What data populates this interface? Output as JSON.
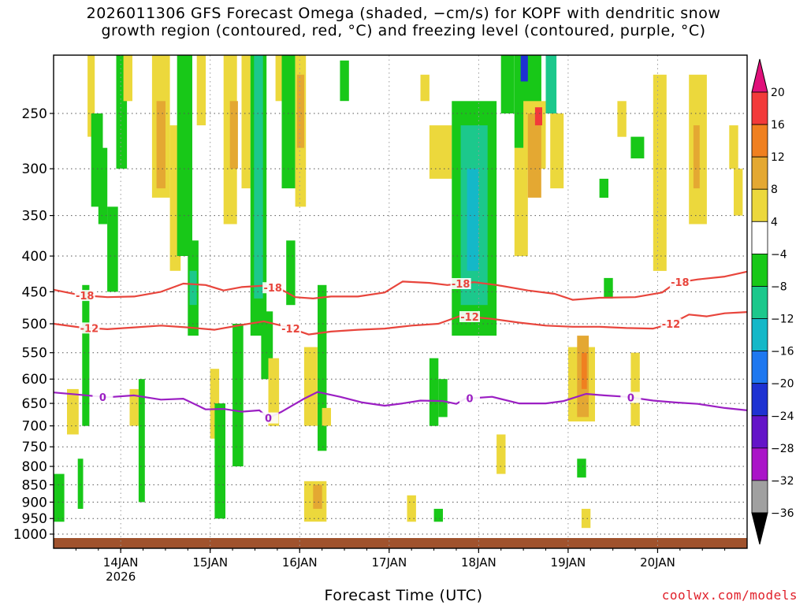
{
  "header": {
    "title_line1": "2026011306 GFS Forecast Omega (shaded, −cm/s) for KOPF with dendritic snow",
    "title_line2": "growth region (contoured, red, °C) and freezing level (contoured, purple, °C)"
  },
  "footer": {
    "xlabel": "Forecast Time (UTC)",
    "credit": "coolwx.com/models"
  },
  "colors": {
    "ground": "#a0522d",
    "snow_contour": "#e8453c",
    "freezing_contour": "#9b1fc3",
    "grid": "#555555"
  },
  "chart_data": {
    "type": "heatmap",
    "title": "2026011306 GFS Forecast Omega (shaded, −cm/s) for KOPF with dendritic snow growth region (contoured, red, °C) and freezing level (contoured, purple, °C)",
    "xlabel": "Forecast Time (UTC)",
    "ylabel": "",
    "x_range_days": [
      "2026-01-13T06",
      "2026-01-20T18"
    ],
    "y_axis": "pressure (hPa), log scale, inverted",
    "ylim": [
      1020,
      200
    ],
    "x_ticks": [
      {
        "label": "14JAN",
        "sub": "2026",
        "day": 0.75
      },
      {
        "label": "15JAN",
        "sub": "",
        "day": 1.75
      },
      {
        "label": "16JAN",
        "sub": "",
        "day": 2.75
      },
      {
        "label": "17JAN",
        "sub": "",
        "day": 3.75
      },
      {
        "label": "18JAN",
        "sub": "",
        "day": 4.75
      },
      {
        "label": "19JAN",
        "sub": "",
        "day": 5.75
      },
      {
        "label": "20JAN",
        "sub": "",
        "day": 6.75
      }
    ],
    "y_ticks": [
      "250",
      "300",
      "350",
      "400",
      "450",
      "500",
      "550",
      "600",
      "650",
      "700",
      "750",
      "800",
      "850",
      "900",
      "950",
      "1000"
    ],
    "y_tick_values": [
      250,
      300,
      350,
      400,
      450,
      500,
      550,
      600,
      650,
      700,
      750,
      800,
      850,
      900,
      950,
      1000
    ],
    "grid": true,
    "colorbar": {
      "labels": [
        "20",
        "16",
        "12",
        "8",
        "4",
        "−4",
        "−8",
        "−12",
        "−16",
        "−20",
        "−24",
        "−28",
        "−32",
        "−36"
      ],
      "bins": [
        {
          "from": 16,
          "to": 20,
          "color": "#f23a3a"
        },
        {
          "from": 12,
          "to": 16,
          "color": "#f08020"
        },
        {
          "from": 8,
          "to": 12,
          "color": "#e4a832"
        },
        {
          "from": 4,
          "to": 8,
          "color": "#ecd83c"
        },
        {
          "from": -4,
          "to": 4,
          "color": "#ffffff"
        },
        {
          "from": -8,
          "to": -4,
          "color": "#18c818"
        },
        {
          "from": -12,
          "to": -8,
          "color": "#1cc88c"
        },
        {
          "from": -16,
          "to": -12,
          "color": "#14b8c8"
        },
        {
          "from": -20,
          "to": -16,
          "color": "#1e78f0"
        },
        {
          "from": -24,
          "to": -20,
          "color": "#1e32d2"
        },
        {
          "from": -28,
          "to": -24,
          "color": "#6414c8"
        },
        {
          "from": -32,
          "to": -28,
          "color": "#aa14c8"
        },
        {
          "from": -36,
          "to": -32,
          "color": "#a0a0a0"
        }
      ],
      "over_color": "#e0107a",
      "under_color": "#000000"
    },
    "contours": [
      {
        "name": "-18",
        "color": "#e8453c",
        "labels": [
          "-18",
          "-18",
          "-18",
          "-18"
        ],
        "label_days": [
          0.35,
          2.45,
          4.55,
          7.0
        ],
        "points": [
          [
            0.0,
            447
          ],
          [
            0.3,
            455
          ],
          [
            0.6,
            458
          ],
          [
            0.9,
            457
          ],
          [
            1.2,
            450
          ],
          [
            1.45,
            438
          ],
          [
            1.7,
            440
          ],
          [
            1.9,
            448
          ],
          [
            2.1,
            443
          ],
          [
            2.35,
            441
          ],
          [
            2.55,
            447
          ],
          [
            2.7,
            458
          ],
          [
            2.9,
            460
          ],
          [
            3.1,
            457
          ],
          [
            3.4,
            457
          ],
          [
            3.7,
            451
          ],
          [
            3.9,
            435
          ],
          [
            4.2,
            437
          ],
          [
            4.4,
            440
          ],
          [
            4.7,
            436
          ],
          [
            4.95,
            440
          ],
          [
            5.3,
            448
          ],
          [
            5.6,
            453
          ],
          [
            5.8,
            462
          ],
          [
            6.1,
            459
          ],
          [
            6.5,
            458
          ],
          [
            6.8,
            451
          ],
          [
            6.95,
            437
          ],
          [
            7.2,
            432
          ],
          [
            7.5,
            428
          ],
          [
            7.75,
            421
          ]
        ]
      },
      {
        "name": "-12",
        "color": "#e8453c",
        "labels": [
          "-12",
          "-12",
          "-12",
          "-12"
        ],
        "label_days": [
          0.4,
          2.65,
          4.65,
          6.9
        ],
        "points": [
          [
            0.0,
            500
          ],
          [
            0.3,
            506
          ],
          [
            0.6,
            509
          ],
          [
            0.9,
            506
          ],
          [
            1.2,
            503
          ],
          [
            1.5,
            506
          ],
          [
            1.8,
            510
          ],
          [
            2.1,
            502
          ],
          [
            2.35,
            496
          ],
          [
            2.6,
            505
          ],
          [
            2.85,
            518
          ],
          [
            3.1,
            513
          ],
          [
            3.4,
            510
          ],
          [
            3.7,
            508
          ],
          [
            4.0,
            503
          ],
          [
            4.3,
            500
          ],
          [
            4.55,
            487
          ],
          [
            4.9,
            492
          ],
          [
            5.2,
            498
          ],
          [
            5.5,
            503
          ],
          [
            5.8,
            505
          ],
          [
            6.1,
            505
          ],
          [
            6.4,
            507
          ],
          [
            6.7,
            508
          ],
          [
            6.9,
            500
          ],
          [
            7.1,
            485
          ],
          [
            7.3,
            488
          ],
          [
            7.5,
            483
          ],
          [
            7.75,
            481
          ]
        ]
      },
      {
        "name": "0",
        "color": "#9b1fc3",
        "labels": [
          "0",
          "0",
          "0",
          "0"
        ],
        "label_days": [
          0.55,
          2.4,
          4.65,
          6.45
        ],
        "points": [
          [
            0.0,
            627
          ],
          [
            0.3,
            632
          ],
          [
            0.6,
            637
          ],
          [
            0.9,
            633
          ],
          [
            1.2,
            642
          ],
          [
            1.45,
            640
          ],
          [
            1.7,
            663
          ],
          [
            1.9,
            662
          ],
          [
            2.1,
            668
          ],
          [
            2.3,
            665
          ],
          [
            2.4,
            682
          ],
          [
            2.55,
            668
          ],
          [
            2.8,
            640
          ],
          [
            2.95,
            626
          ],
          [
            3.2,
            636
          ],
          [
            3.45,
            648
          ],
          [
            3.7,
            655
          ],
          [
            3.9,
            650
          ],
          [
            4.1,
            644
          ],
          [
            4.35,
            645
          ],
          [
            4.5,
            651
          ],
          [
            4.6,
            640
          ],
          [
            4.9,
            636
          ],
          [
            5.2,
            650
          ],
          [
            5.5,
            650
          ],
          [
            5.7,
            645
          ],
          [
            5.95,
            630
          ],
          [
            6.15,
            633
          ],
          [
            6.4,
            636
          ],
          [
            6.7,
            644
          ],
          [
            6.95,
            648
          ],
          [
            7.2,
            651
          ],
          [
            7.5,
            660
          ],
          [
            7.75,
            665
          ]
        ]
      }
    ],
    "regions": [
      {
        "day0": 0.0,
        "day1": 0.12,
        "p0": 820,
        "p1": 960,
        "value": -6
      },
      {
        "day0": 0.15,
        "day1": 0.28,
        "p0": 620,
        "p1": 720,
        "value": 5
      },
      {
        "day0": 0.27,
        "day1": 0.33,
        "p0": 780,
        "p1": 920,
        "value": -6
      },
      {
        "day0": 0.32,
        "day1": 0.4,
        "p0": 440,
        "p1": 700,
        "value": -6
      },
      {
        "day0": 0.38,
        "day1": 0.46,
        "p0": 200,
        "p1": 270,
        "value": 5
      },
      {
        "day0": 0.42,
        "day1": 0.55,
        "p0": 250,
        "p1": 340,
        "value": -6
      },
      {
        "day0": 0.5,
        "day1": 0.6,
        "p0": 280,
        "p1": 360,
        "value": -6
      },
      {
        "day0": 0.6,
        "day1": 0.72,
        "p0": 340,
        "p1": 450,
        "value": -6
      },
      {
        "day0": 0.7,
        "day1": 0.82,
        "p0": 200,
        "p1": 300,
        "value": -6
      },
      {
        "day0": 0.78,
        "day1": 0.88,
        "p0": 200,
        "p1": 240,
        "value": 5
      },
      {
        "day0": 0.85,
        "day1": 0.95,
        "p0": 620,
        "p1": 700,
        "value": 5
      },
      {
        "day0": 0.95,
        "day1": 1.02,
        "p0": 600,
        "p1": 900,
        "value": -6
      },
      {
        "day0": 1.1,
        "day1": 1.3,
        "p0": 200,
        "p1": 330,
        "value": 5
      },
      {
        "day0": 1.15,
        "day1": 1.25,
        "p0": 240,
        "p1": 320,
        "value": 10
      },
      {
        "day0": 1.3,
        "day1": 1.42,
        "p0": 260,
        "p1": 420,
        "value": 5
      },
      {
        "day0": 1.38,
        "day1": 1.55,
        "p0": 200,
        "p1": 400,
        "value": -6
      },
      {
        "day0": 1.5,
        "day1": 1.62,
        "p0": 380,
        "p1": 520,
        "value": -6
      },
      {
        "day0": 1.52,
        "day1": 1.6,
        "p0": 420,
        "p1": 470,
        "value": -10
      },
      {
        "day0": 1.6,
        "day1": 1.7,
        "p0": 200,
        "p1": 260,
        "value": 5
      },
      {
        "day0": 1.75,
        "day1": 1.85,
        "p0": 580,
        "p1": 730,
        "value": 5
      },
      {
        "day0": 1.8,
        "day1": 1.92,
        "p0": 650,
        "p1": 950,
        "value": -6
      },
      {
        "day0": 1.9,
        "day1": 2.05,
        "p0": 200,
        "p1": 360,
        "value": 5
      },
      {
        "day0": 1.97,
        "day1": 2.06,
        "p0": 240,
        "p1": 300,
        "value": 10
      },
      {
        "day0": 2.0,
        "day1": 2.12,
        "p0": 500,
        "p1": 800,
        "value": -6
      },
      {
        "day0": 2.1,
        "day1": 2.2,
        "p0": 200,
        "p1": 320,
        "value": 5
      },
      {
        "day0": 2.2,
        "day1": 2.38,
        "p0": 200,
        "p1": 520,
        "value": -6
      },
      {
        "day0": 2.24,
        "day1": 2.34,
        "p0": 200,
        "p1": 460,
        "value": -10
      },
      {
        "day0": 2.32,
        "day1": 2.45,
        "p0": 480,
        "p1": 600,
        "value": -6
      },
      {
        "day0": 2.4,
        "day1": 2.52,
        "p0": 560,
        "p1": 700,
        "value": 5
      },
      {
        "day0": 2.48,
        "day1": 2.6,
        "p0": 200,
        "p1": 240,
        "value": 5
      },
      {
        "day0": 2.55,
        "day1": 2.7,
        "p0": 200,
        "p1": 320,
        "value": -6
      },
      {
        "day0": 2.6,
        "day1": 2.7,
        "p0": 380,
        "p1": 470,
        "value": -6
      },
      {
        "day0": 2.7,
        "day1": 2.82,
        "p0": 200,
        "p1": 340,
        "value": 5
      },
      {
        "day0": 2.72,
        "day1": 2.8,
        "p0": 220,
        "p1": 280,
        "value": 10
      },
      {
        "day0": 2.8,
        "day1": 2.95,
        "p0": 540,
        "p1": 700,
        "value": 5
      },
      {
        "day0": 2.95,
        "day1": 3.05,
        "p0": 440,
        "p1": 760,
        "value": -6
      },
      {
        "day0": 3.0,
        "day1": 3.1,
        "p0": 660,
        "p1": 700,
        "value": 5
      },
      {
        "day0": 2.8,
        "day1": 3.05,
        "p0": 840,
        "p1": 960,
        "value": 5
      },
      {
        "day0": 2.9,
        "day1": 3.0,
        "p0": 850,
        "p1": 920,
        "value": 10
      },
      {
        "day0": 3.2,
        "day1": 3.3,
        "p0": 210,
        "p1": 240,
        "value": -6
      },
      {
        "day0": 3.95,
        "day1": 4.05,
        "p0": 880,
        "p1": 960,
        "value": 5
      },
      {
        "day0": 4.1,
        "day1": 4.2,
        "p0": 220,
        "p1": 240,
        "value": 5
      },
      {
        "day0": 4.2,
        "day1": 4.3,
        "p0": 560,
        "p1": 700,
        "value": -6
      },
      {
        "day0": 4.3,
        "day1": 4.4,
        "p0": 600,
        "p1": 680,
        "value": -6
      },
      {
        "day0": 4.2,
        "day1": 4.45,
        "p0": 260,
        "p1": 310,
        "value": 5
      },
      {
        "day0": 4.25,
        "day1": 4.35,
        "p0": 920,
        "p1": 960,
        "value": -6
      },
      {
        "day0": 4.45,
        "day1": 4.95,
        "p0": 240,
        "p1": 520,
        "value": -6
      },
      {
        "day0": 4.55,
        "day1": 4.85,
        "p0": 260,
        "p1": 470,
        "value": -10
      },
      {
        "day0": 4.62,
        "day1": 4.75,
        "p0": 300,
        "p1": 420,
        "value": -14
      },
      {
        "day0": 4.95,
        "day1": 5.05,
        "p0": 720,
        "p1": 820,
        "value": 5
      },
      {
        "day0": 5.0,
        "day1": 5.15,
        "p0": 200,
        "p1": 250,
        "value": -6
      },
      {
        "day0": 5.15,
        "day1": 5.3,
        "p0": 280,
        "p1": 400,
        "value": 5
      },
      {
        "day0": 5.15,
        "day1": 5.45,
        "p0": 200,
        "p1": 280,
        "value": -6
      },
      {
        "day0": 5.22,
        "day1": 5.3,
        "p0": 205,
        "p1": 225,
        "value": -22
      },
      {
        "day0": 5.25,
        "day1": 5.5,
        "p0": 240,
        "p1": 300,
        "value": 5
      },
      {
        "day0": 5.3,
        "day1": 5.45,
        "p0": 250,
        "p1": 330,
        "value": 10
      },
      {
        "day0": 5.38,
        "day1": 5.46,
        "p0": 245,
        "p1": 260,
        "value": 18
      },
      {
        "day0": 5.5,
        "day1": 5.62,
        "p0": 200,
        "p1": 250,
        "value": -10
      },
      {
        "day0": 5.55,
        "day1": 5.7,
        "p0": 250,
        "p1": 320,
        "value": 5
      },
      {
        "day0": 5.75,
        "day1": 6.05,
        "p0": 540,
        "p1": 690,
        "value": 5
      },
      {
        "day0": 5.85,
        "day1": 5.98,
        "p0": 520,
        "p1": 680,
        "value": 10
      },
      {
        "day0": 5.9,
        "day1": 5.96,
        "p0": 550,
        "p1": 620,
        "value": 13
      },
      {
        "day0": 5.85,
        "day1": 5.95,
        "p0": 780,
        "p1": 830,
        "value": -6
      },
      {
        "day0": 5.9,
        "day1": 6.0,
        "p0": 920,
        "p1": 980,
        "value": 5
      },
      {
        "day0": 6.1,
        "day1": 6.2,
        "p0": 310,
        "p1": 330,
        "value": -6
      },
      {
        "day0": 6.15,
        "day1": 6.25,
        "p0": 430,
        "p1": 460,
        "value": -6
      },
      {
        "day0": 6.3,
        "day1": 6.4,
        "p0": 240,
        "p1": 270,
        "value": 5
      },
      {
        "day0": 6.45,
        "day1": 6.6,
        "p0": 270,
        "p1": 290,
        "value": -6
      },
      {
        "day0": 6.45,
        "day1": 6.55,
        "p0": 550,
        "p1": 700,
        "value": 5
      },
      {
        "day0": 6.7,
        "day1": 6.85,
        "p0": 220,
        "p1": 420,
        "value": 5
      },
      {
        "day0": 7.1,
        "day1": 7.3,
        "p0": 220,
        "p1": 360,
        "value": 5
      },
      {
        "day0": 7.15,
        "day1": 7.22,
        "p0": 260,
        "p1": 320,
        "value": 10
      },
      {
        "day0": 7.55,
        "day1": 7.65,
        "p0": 260,
        "p1": 300,
        "value": 5
      },
      {
        "day0": 7.6,
        "day1": 7.7,
        "p0": 300,
        "p1": 350,
        "value": 5
      }
    ]
  }
}
